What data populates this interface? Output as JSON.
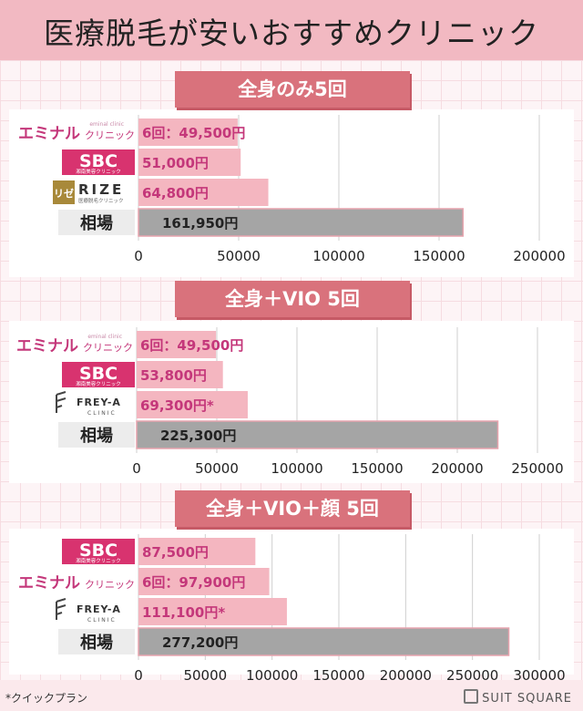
{
  "header": {
    "title": "医療脱毛が安いおすすめクリニック"
  },
  "sections": [
    {
      "banner": "全身のみ5回",
      "rows": [
        {
          "clinic": "エミナル",
          "clinic_sub": "クリニック",
          "clinic_tag": "eminal clinic",
          "label": "6回：49,500円",
          "value": 49500,
          "logo": "eminal"
        },
        {
          "clinic": "SBC",
          "clinic_sub": "湘南美容クリニック",
          "label": "51,000円",
          "value": 51000,
          "logo": "sbc"
        },
        {
          "clinic": "RIZE",
          "clinic_mark": "リゼ",
          "clinic_sub": "医療脱毛クリニック",
          "label": "64,800円",
          "value": 64800,
          "logo": "rize"
        },
        {
          "clinic": "相場",
          "label": "161,950円",
          "value": 161950,
          "logo": "avg"
        }
      ],
      "ticks": [
        "0",
        "50000",
        "100000",
        "150000",
        "200000"
      ],
      "xlim": [
        0,
        200000
      ]
    },
    {
      "banner": "全身＋VIO 5回",
      "rows": [
        {
          "clinic": "エミナル",
          "clinic_sub": "クリニック",
          "clinic_tag": "eminal clinic",
          "label": "6回：49,500円",
          "value": 49500,
          "logo": "eminal"
        },
        {
          "clinic": "SBC",
          "clinic_sub": "湘南美容クリニック",
          "label": "53,800円",
          "value": 53800,
          "logo": "sbc"
        },
        {
          "clinic": "FREY-A",
          "clinic_sub": "CLINIC",
          "label": "69,300円*",
          "value": 69300,
          "logo": "freya"
        },
        {
          "clinic": "相場",
          "label": "225,300円",
          "value": 225300,
          "logo": "avg"
        }
      ],
      "ticks": [
        "0",
        "50000",
        "100000",
        "150000",
        "200000",
        "250000"
      ],
      "xlim": [
        0,
        250000
      ]
    },
    {
      "banner": "全身＋VIO＋顔 5回",
      "rows": [
        {
          "clinic": "SBC",
          "clinic_sub": "湘南美容クリニック",
          "label": "87,500円",
          "value": 87500,
          "logo": "sbc"
        },
        {
          "clinic": "エミナル",
          "clinic_sub": "クリニック",
          "label": "6回：97,900円",
          "value": 97900,
          "logo": "eminal"
        },
        {
          "clinic": "FREY-A",
          "clinic_sub": "CLINIC",
          "label": "111,100円*",
          "value": 111100,
          "logo": "freya"
        },
        {
          "clinic": "相場",
          "label": "277,200円",
          "value": 277200,
          "logo": "avg"
        }
      ],
      "ticks": [
        "0",
        "50000",
        "100000",
        "150000",
        "200000",
        "250000",
        "300000"
      ],
      "xlim": [
        0,
        300000
      ]
    }
  ],
  "chart_data": [
    {
      "type": "bar",
      "title": "全身のみ5回",
      "categories": [
        "エミナルクリニック",
        "SBC",
        "RIZE",
        "相場"
      ],
      "values": [
        49500,
        51000,
        64800,
        161950
      ],
      "xlim": [
        0,
        200000
      ]
    },
    {
      "type": "bar",
      "title": "全身＋VIO 5回",
      "categories": [
        "エミナルクリニック",
        "SBC",
        "FREY-A",
        "相場"
      ],
      "values": [
        49500,
        53800,
        69300,
        225300
      ],
      "xlim": [
        0,
        250000
      ]
    },
    {
      "type": "bar",
      "title": "全身＋VIO＋顔 5回",
      "categories": [
        "SBC",
        "エミナルクリニック",
        "FREY-A",
        "相場"
      ],
      "values": [
        87500,
        97900,
        111100,
        277200
      ],
      "xlim": [
        0,
        300000
      ]
    }
  ],
  "footer": {
    "note": "*クイックプラン",
    "brand": "SUIT SQUARE"
  },
  "colors": {
    "header": "#f2b9c2",
    "banner": "#d9727c",
    "bar": "#f4b6c0",
    "avg_bar": "#a5a5a5",
    "eminal": "#c4377a",
    "sbc": "#d8336f",
    "rize": "#a8893a",
    "grid": "#cfcfcf"
  }
}
